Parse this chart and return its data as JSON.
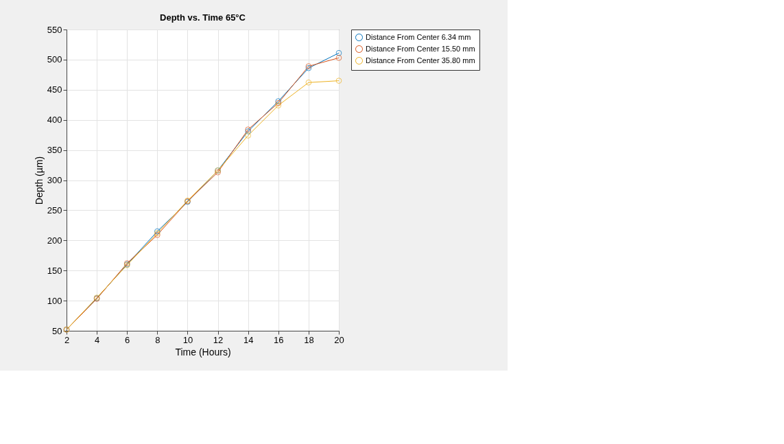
{
  "chart_data": {
    "type": "line",
    "title": "Depth vs. Time 65°C",
    "xlabel": "Time (Hours)",
    "ylabel": "Depth (µm)",
    "x": [
      2,
      4,
      6,
      8,
      10,
      12,
      14,
      16,
      18,
      20
    ],
    "series": [
      {
        "name": "Distance From Center 6.34 mm",
        "color": "#0072bd",
        "values": [
          52,
          104,
          160,
          215,
          264,
          316,
          381,
          431,
          486,
          511
        ]
      },
      {
        "name": "Distance From Center 15.50 mm",
        "color": "#d95319",
        "values": [
          52,
          103,
          162,
          209,
          265,
          313,
          384,
          428,
          489,
          503
        ]
      },
      {
        "name": "Distance From Center 35.80 mm",
        "color": "#edb120",
        "values": [
          52,
          105,
          159,
          212,
          266,
          316,
          374,
          424,
          462,
          465
        ]
      }
    ],
    "xlim": [
      2,
      20
    ],
    "xticks": [
      2,
      4,
      6,
      8,
      10,
      12,
      14,
      16,
      18,
      20
    ],
    "ylim": [
      50,
      550
    ],
    "yticks": [
      50,
      100,
      150,
      200,
      250,
      300,
      350,
      400,
      450,
      500,
      550
    ],
    "grid": true,
    "legend": "top right",
    "marker": "circle",
    "line_style": "solid"
  }
}
